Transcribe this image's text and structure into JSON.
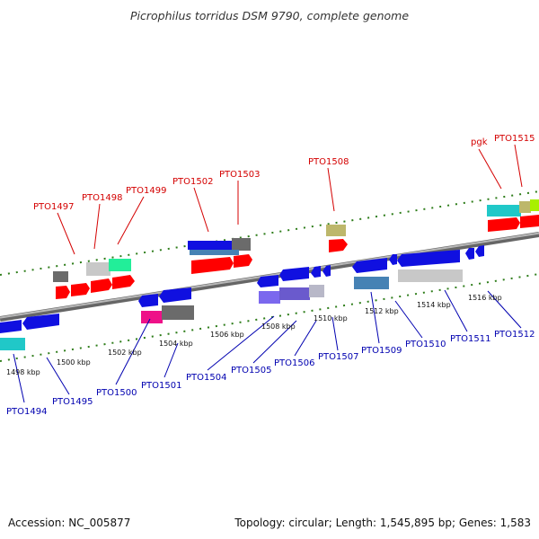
{
  "title": "Picrophilus torridus DSM 9790, complete genome",
  "footer": {
    "accession": "Accession: NC_005877",
    "summary": "Topology: circular; Length: 1,545,895 bp; Genes: 1,583"
  },
  "ruler": {
    "ticks": [
      "1498 kbp",
      "1500 kbp",
      "1502 kbp",
      "1504 kbp",
      "1506 kbp",
      "1508 kbp",
      "1510 kbp",
      "1512 kbp",
      "1514 kbp",
      "1516 kbp"
    ]
  },
  "genes": {
    "top": [
      "PTO1497",
      "PTO1498",
      "PTO1499",
      "PTO1502",
      "PTO1503",
      "PTO1508",
      "pgk",
      "PTO1515"
    ],
    "bottom": [
      "PTO1494",
      "PTO1495",
      "PTO1500",
      "PTO1501",
      "PTO1504",
      "PTO1505",
      "PTO1506",
      "PTO1507",
      "PTO1509",
      "PTO1510",
      "PTO1511",
      "PTO1512"
    ]
  },
  "colors": {
    "label_top": "#d40000",
    "label_bottom": "#0000b0",
    "backbone": "#8a8a8a",
    "dots": "#2e7d1a",
    "red": "#ff0000",
    "blue": "#1010e0"
  }
}
